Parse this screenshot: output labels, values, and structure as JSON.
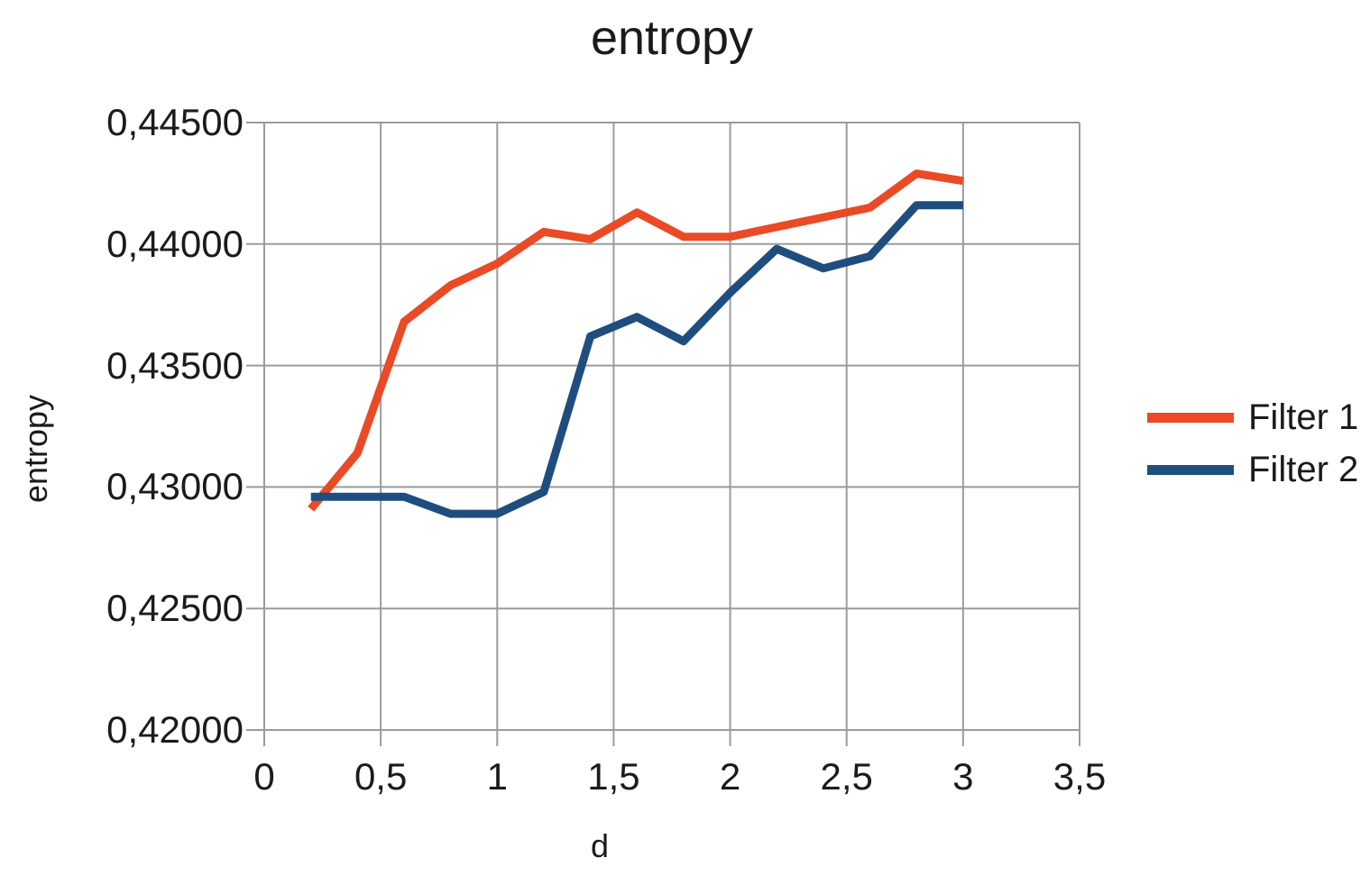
{
  "chart_data": {
    "type": "line",
    "title": "entropy",
    "xlabel": "d",
    "ylabel": "entropy",
    "grid": true,
    "legend_position": "right",
    "x_axis": {
      "min": 0,
      "max": 3.5,
      "ticks": [
        {
          "value": 0,
          "label": "0"
        },
        {
          "value": 0.5,
          "label": "0,5"
        },
        {
          "value": 1,
          "label": "1"
        },
        {
          "value": 1.5,
          "label": "1,5"
        },
        {
          "value": 2,
          "label": "2"
        },
        {
          "value": 2.5,
          "label": "2,5"
        },
        {
          "value": 3,
          "label": "3"
        },
        {
          "value": 3.5,
          "label": "3,5"
        }
      ]
    },
    "y_axis": {
      "min": 0.42,
      "max": 0.445,
      "ticks": [
        {
          "value": 0.445,
          "label": "0,44500"
        },
        {
          "value": 0.44,
          "label": "0,44000"
        },
        {
          "value": 0.435,
          "label": "0,43500"
        },
        {
          "value": 0.43,
          "label": "0,43000"
        },
        {
          "value": 0.425,
          "label": "0,42500"
        },
        {
          "value": 0.42,
          "label": "0,42000"
        }
      ]
    },
    "x": [
      0.2,
      0.4,
      0.6,
      0.8,
      1.0,
      1.2,
      1.4,
      1.6,
      1.8,
      2.0,
      2.2,
      2.4,
      2.6,
      2.8,
      3.0
    ],
    "series": [
      {
        "name": "Filter 1",
        "color": "#ea4a26",
        "values": [
          0.4291,
          0.4314,
          0.4368,
          0.4383,
          0.4392,
          0.4405,
          0.4402,
          0.4413,
          0.4403,
          0.4403,
          0.4407,
          0.4411,
          0.4415,
          0.4429,
          0.4426
        ]
      },
      {
        "name": "Filter 2",
        "color": "#1f4e7e",
        "values": [
          0.4296,
          0.4296,
          0.4296,
          0.4289,
          0.4289,
          0.4298,
          0.4362,
          0.437,
          0.436,
          0.438,
          0.4398,
          0.439,
          0.4395,
          0.4416,
          0.4416
        ]
      }
    ]
  },
  "colors": {
    "grid": "#9b9b9b",
    "text": "#1b1b1b",
    "background": "#ffffff"
  }
}
